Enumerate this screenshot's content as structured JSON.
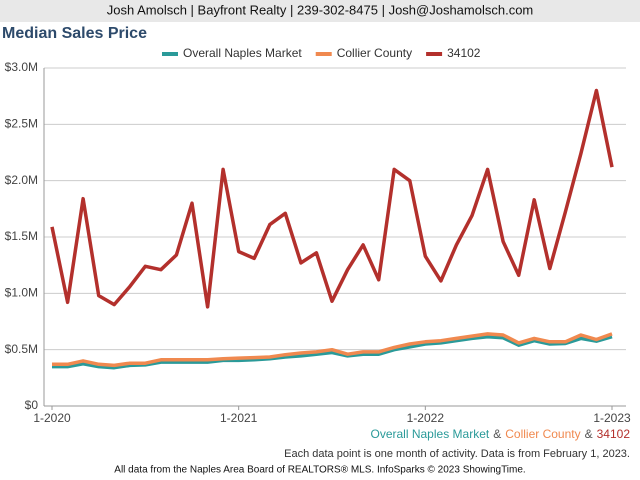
{
  "header": {
    "text": "Josh Amolsch | Bayfront Realty | 239-302-8475 | Josh@Joshamolsch.com"
  },
  "chart_data": {
    "type": "line",
    "title": "Median Sales Price",
    "categories": [
      "1-2020",
      null,
      null,
      null,
      null,
      null,
      null,
      null,
      null,
      null,
      null,
      null,
      "1-2021",
      null,
      null,
      null,
      null,
      null,
      null,
      null,
      null,
      null,
      null,
      null,
      "1-2022",
      null,
      null,
      null,
      null,
      null,
      null,
      null,
      null,
      null,
      null,
      null,
      "1-2023"
    ],
    "series": [
      {
        "name": "Overall Naples Market",
        "color": "#2a9a99",
        "values": [
          350000,
          350000,
          375000,
          350000,
          340000,
          360000,
          365000,
          390000,
          390000,
          390000,
          390000,
          405000,
          405000,
          410000,
          420000,
          435000,
          445000,
          460000,
          475000,
          445000,
          460000,
          460000,
          500000,
          525000,
          550000,
          560000,
          580000,
          600000,
          615000,
          605000,
          540000,
          580000,
          550000,
          555000,
          600000,
          575000,
          615000
        ]
      },
      {
        "name": "Collier County",
        "color": "#f0894f",
        "values": [
          370000,
          370000,
          400000,
          370000,
          360000,
          380000,
          380000,
          410000,
          410000,
          410000,
          410000,
          420000,
          425000,
          430000,
          435000,
          455000,
          470000,
          480000,
          500000,
          460000,
          480000,
          480000,
          520000,
          550000,
          570000,
          580000,
          600000,
          620000,
          640000,
          630000,
          560000,
          600000,
          570000,
          570000,
          630000,
          590000,
          640000
        ]
      },
      {
        "name": "34102",
        "color": "#b3302c",
        "values": [
          1590000,
          920000,
          1840000,
          980000,
          900000,
          1060000,
          1240000,
          1210000,
          1340000,
          1800000,
          880000,
          2100000,
          1370000,
          1310000,
          1610000,
          1710000,
          1270000,
          1360000,
          930000,
          1210000,
          1430000,
          1120000,
          2100000,
          2000000,
          1330000,
          1110000,
          1430000,
          1690000,
          2100000,
          1460000,
          1160000,
          1830000,
          1220000,
          1720000,
          2240000,
          2800000,
          2120000
        ]
      }
    ],
    "ylim": [
      0,
      3000000
    ],
    "yticks": [
      {
        "value": 0,
        "label": "$0"
      },
      {
        "value": 500000,
        "label": "$0.5M"
      },
      {
        "value": 1000000,
        "label": "$1.0M"
      },
      {
        "value": 1500000,
        "label": "$1.5M"
      },
      {
        "value": 2000000,
        "label": "$2.0M"
      },
      {
        "value": 2500000,
        "label": "$2.5M"
      },
      {
        "value": 3000000,
        "label": "$3.0M"
      }
    ],
    "grid": true,
    "legend": "top",
    "legend_joiner": "&",
    "note": "Each data point is one month of activity. Data is from February 1, 2023.",
    "source": "All data from the Naples Area Board of REALTORS® MLS. InfoSparks © 2023 ShowingTime."
  }
}
